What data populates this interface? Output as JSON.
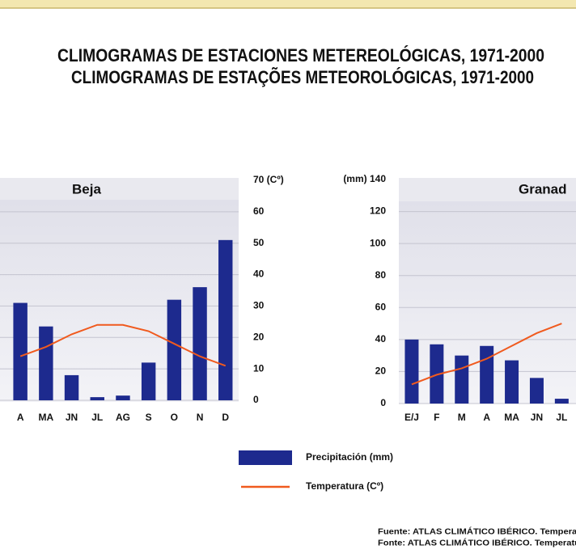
{
  "title": "CLIMOGRAMAS DE ESTACIONES METEREOLÓGICAS, 1971-2000",
  "subtitle": "CLIMOGRAMAS DE ESTAÇÕES METEOROLÓGICAS, 1971-2000",
  "source": [
    "Fuente: ATLAS CLIMÁTICO IBÉRICO. Temperat",
    "Fonte: ATLAS CLIMÁTICO IBÉRICO. Temperatu"
  ],
  "chart_data": [
    {
      "type": "combo",
      "title": "Beja",
      "categories": [
        "A",
        "MA",
        "JN",
        "JL",
        "AG",
        "S",
        "O",
        "N",
        "D"
      ],
      "series": [
        {
          "name": "Precipitación (mm)",
          "color": "#1d2a8e",
          "type": "bar",
          "values": [
            62,
            47,
            16,
            2,
            3,
            24,
            64,
            72,
            102
          ]
        },
        {
          "name": "Temperatura (Cº)",
          "color": "#f05a1e",
          "type": "line",
          "axis": "y2",
          "values": [
            14,
            17,
            21,
            24,
            24,
            22,
            18,
            14,
            11
          ]
        }
      ],
      "ylim": [
        0,
        140
      ],
      "y2lim": [
        0,
        70
      ],
      "y2ticks": [
        0,
        10,
        20,
        30,
        40,
        50,
        60,
        {
          "value": 70,
          "label": "70 (Cº)"
        }
      ],
      "grid": true
    },
    {
      "type": "combo",
      "title": "Granad",
      "categories": [
        "E/J",
        "F",
        "M",
        "A",
        "MA",
        "JN",
        "JL"
      ],
      "series": [
        {
          "name": "Precipitación (mm)",
          "color": "#1d2a8e",
          "type": "bar",
          "values": [
            40,
            37,
            30,
            36,
            27,
            16,
            3
          ]
        },
        {
          "name": "Temperatura (Cº)",
          "color": "#f05a1e",
          "type": "line",
          "axis": "y2",
          "values": [
            6,
            9,
            11,
            14,
            18,
            22,
            25
          ]
        }
      ],
      "ylim": [
        0,
        140
      ],
      "y2lim": [
        0,
        70
      ],
      "yticks": [
        0,
        20,
        40,
        60,
        80,
        100,
        120,
        {
          "value": 140,
          "label": "(mm) 140"
        }
      ],
      "grid": true
    }
  ]
}
